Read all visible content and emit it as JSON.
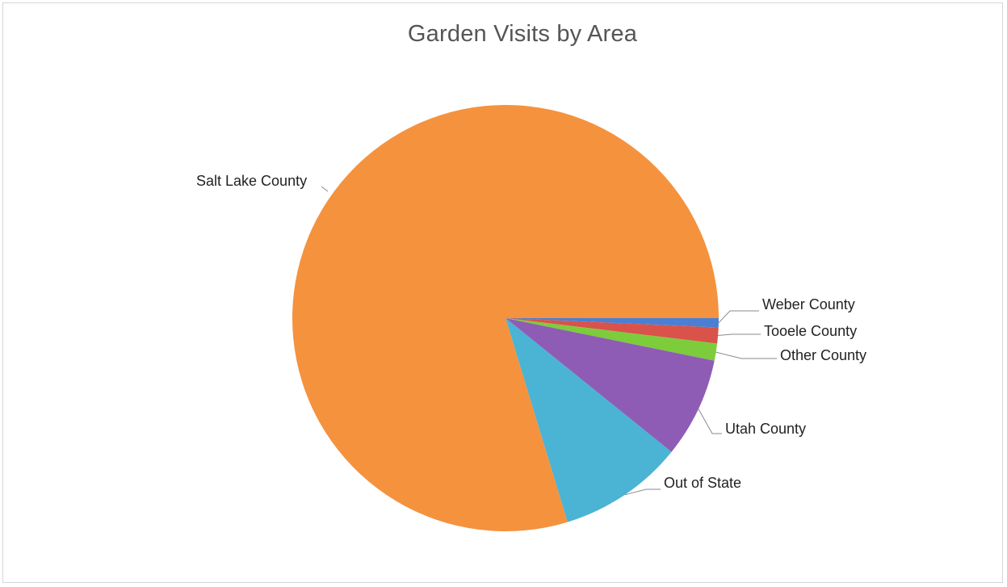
{
  "chart_data": {
    "type": "pie",
    "title": "Garden Visits by Area",
    "slices": [
      {
        "label": "Weber County",
        "value": 0.7,
        "color": "#4a7fd4"
      },
      {
        "label": "Tooele County",
        "value": 1.2,
        "color": "#d9534a"
      },
      {
        "label": "Other County",
        "value": 1.3,
        "color": "#7dcc3c"
      },
      {
        "label": "Utah County",
        "value": 7.6,
        "color": "#8e5cb5"
      },
      {
        "label": "Out of State",
        "value": 9.5,
        "color": "#4bb3d4"
      },
      {
        "label": "Salt Lake County",
        "value": 79.7,
        "color": "#f5923e"
      }
    ],
    "start_angle": "3 o'clock",
    "direction": "clockwise",
    "legend": "none",
    "labels": "outside with leader lines"
  }
}
